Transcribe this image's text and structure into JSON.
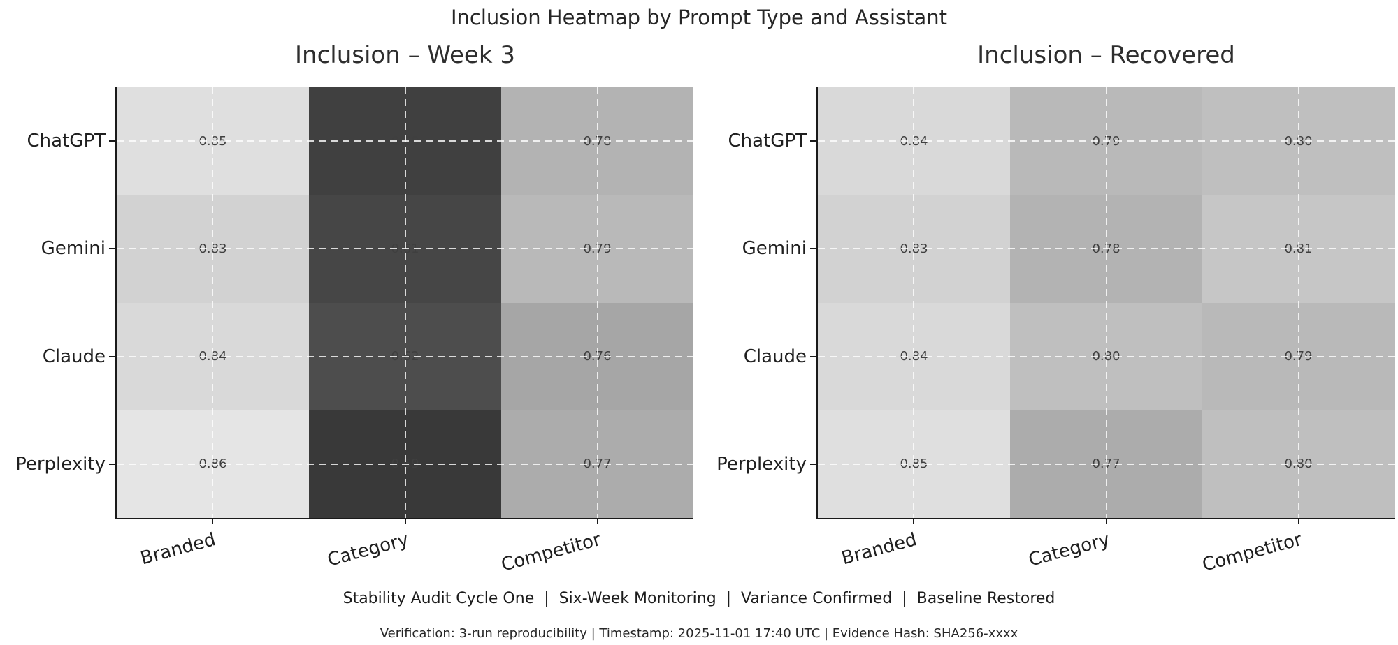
{
  "figure": {
    "title": "Inclusion Heatmap by Prompt Type and Assistant",
    "footer_line1": "Stability Audit Cycle One  |  Six-Week Monitoring  |  Variance Confirmed  |  Baseline Restored",
    "footer_line2": "Verification: 3-run reproducibility | Timestamp: 2025-11-01 17:40 UTC | Evidence Hash: SHA256-xxxx"
  },
  "chart_data": [
    {
      "type": "heatmap",
      "title": "Inclusion – Week 3",
      "rows": [
        "ChatGPT",
        "Gemini",
        "Claude",
        "Perplexity"
      ],
      "columns": [
        "Branded",
        "Category",
        "Competitor"
      ],
      "values": [
        [
          0.85,
          0.6,
          0.78
        ],
        [
          0.83,
          0.61,
          0.79
        ],
        [
          0.84,
          0.62,
          0.76
        ],
        [
          0.86,
          0.59,
          0.77
        ]
      ],
      "value_format": "2dp",
      "colormap": "gray",
      "vmin": 0.5,
      "vmax": 0.9,
      "grid": "dashed-white",
      "legend": "none"
    },
    {
      "type": "heatmap",
      "title": "Inclusion – Recovered",
      "rows": [
        "ChatGPT",
        "Gemini",
        "Claude",
        "Perplexity"
      ],
      "columns": [
        "Branded",
        "Category",
        "Competitor"
      ],
      "values": [
        [
          0.84,
          0.79,
          0.8
        ],
        [
          0.83,
          0.78,
          0.81
        ],
        [
          0.84,
          0.8,
          0.79
        ],
        [
          0.85,
          0.77,
          0.8
        ]
      ],
      "value_format": "2dp",
      "colormap": "gray",
      "vmin": 0.5,
      "vmax": 0.9,
      "grid": "dashed-white",
      "legend": "none"
    }
  ]
}
